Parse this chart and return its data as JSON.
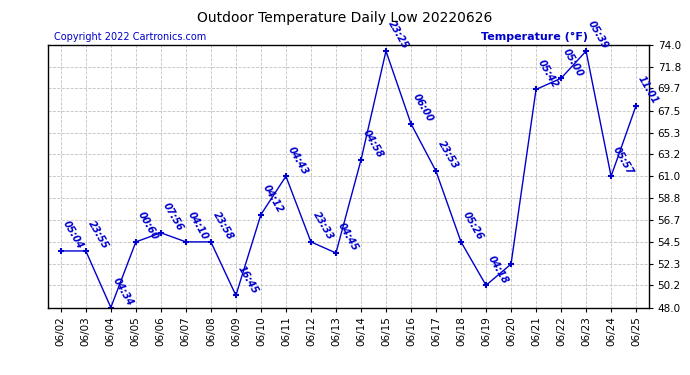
{
  "title": "Outdoor Temperature Daily Low 20220626",
  "copyright": "Copyright 2022 Cartronics.com",
  "ylabel": "Temperature (°F)",
  "dates": [
    "06/02",
    "06/03",
    "06/04",
    "06/05",
    "06/06",
    "06/07",
    "06/08",
    "06/09",
    "06/10",
    "06/11",
    "06/12",
    "06/13",
    "06/14",
    "06/15",
    "06/16",
    "06/17",
    "06/18",
    "06/19",
    "06/20",
    "06/21",
    "06/22",
    "06/23",
    "06/24",
    "06/25"
  ],
  "temperatures": [
    53.6,
    53.6,
    48.0,
    54.5,
    55.4,
    54.5,
    54.5,
    49.2,
    57.2,
    61.0,
    54.5,
    53.4,
    62.6,
    73.4,
    66.2,
    61.5,
    54.5,
    50.2,
    52.3,
    69.6,
    70.7,
    73.4,
    61.0,
    68.0
  ],
  "times": [
    "05:04",
    "23:55",
    "04:34",
    "00:60",
    "07:56",
    "04:10",
    "23:58",
    "16:45",
    "04:12",
    "04:43",
    "23:33",
    "04:45",
    "04:58",
    "23:25",
    "06:00",
    "23:53",
    "05:26",
    "04:18",
    "",
    "05:42",
    "05:00",
    "05:39",
    "05:57",
    "11:01"
  ],
  "line_color": "#0000cc",
  "marker": "+",
  "ylim": [
    48.0,
    74.0
  ],
  "yticks": [
    48.0,
    50.2,
    52.3,
    54.5,
    56.7,
    58.8,
    61.0,
    63.2,
    65.3,
    67.5,
    69.7,
    71.8,
    74.0
  ],
  "bg_color": "#ffffff",
  "grid_color": "#bbbbbb",
  "title_color": "#000000",
  "annotation_color": "#0000cc",
  "annotation_fontsize": 7.0,
  "copyright_color": "#0000cc",
  "copyright_fontsize": 7.0,
  "ylabel_color": "#0000cc",
  "ylabel_fontsize": 8.0
}
